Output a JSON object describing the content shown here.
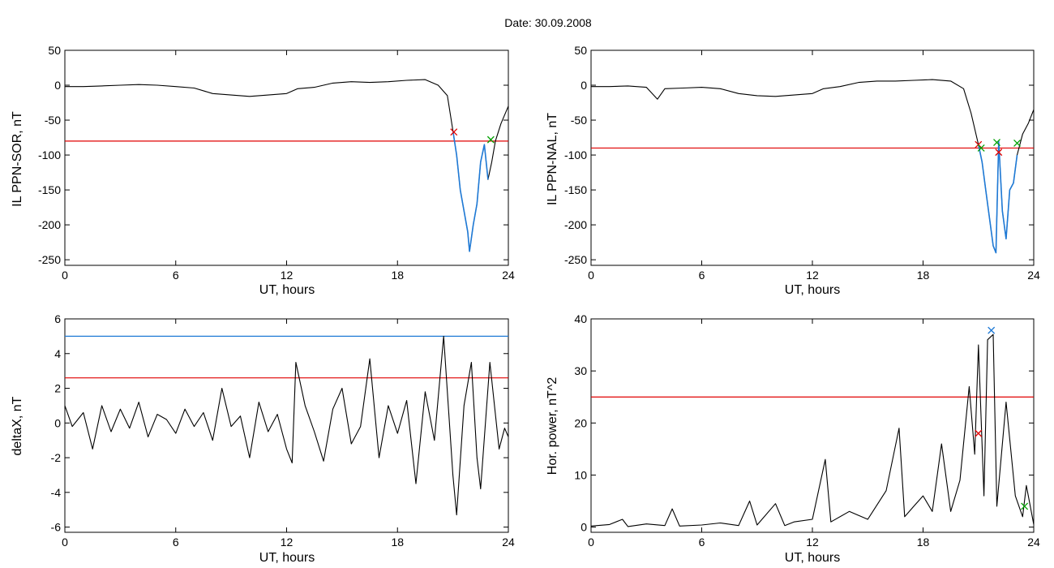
{
  "figure": {
    "title": "Date:  30.09.2008"
  },
  "chart_data": [
    {
      "type": "line",
      "xlabel": "UT, hours",
      "ylabel": "IL PPN-SOR, nT",
      "xlim": [
        0,
        24
      ],
      "ylim": [
        -258,
        50
      ],
      "xticks": [
        0,
        6,
        12,
        18,
        24
      ],
      "yticks": [
        50,
        0,
        -50,
        -100,
        -150,
        -200,
        -250
      ],
      "grid": false,
      "trace": [
        [
          0,
          -2
        ],
        [
          1,
          -2
        ],
        [
          2,
          -1
        ],
        [
          3,
          0
        ],
        [
          4,
          1
        ],
        [
          5,
          0
        ],
        [
          6,
          -2
        ],
        [
          7,
          -4
        ],
        [
          8,
          -12
        ],
        [
          9,
          -14
        ],
        [
          10,
          -16
        ],
        [
          11,
          -14
        ],
        [
          12,
          -12
        ],
        [
          12.6,
          -5
        ],
        [
          13.5,
          -3
        ],
        [
          14.5,
          3
        ],
        [
          15.5,
          5
        ],
        [
          16.5,
          4
        ],
        [
          17.5,
          5
        ],
        [
          18.5,
          7
        ],
        [
          19.5,
          8
        ],
        [
          20.2,
          0
        ],
        [
          20.7,
          -15
        ],
        [
          21.0,
          -65
        ],
        [
          21.2,
          -100
        ],
        [
          21.4,
          -150
        ],
        [
          21.6,
          -180
        ],
        [
          21.8,
          -210
        ],
        [
          21.9,
          -238
        ],
        [
          22.1,
          -200
        ],
        [
          22.3,
          -170
        ],
        [
          22.5,
          -110
        ],
        [
          22.7,
          -85
        ],
        [
          22.9,
          -135
        ],
        [
          23.1,
          -110
        ],
        [
          23.3,
          -80
        ],
        [
          23.6,
          -55
        ],
        [
          24.0,
          -30
        ]
      ],
      "highlight_range": [
        21.0,
        23.0
      ],
      "threshold": {
        "value": -80,
        "color": "#e00000"
      },
      "markers": [
        {
          "x": 21.05,
          "y": -67,
          "color": "#e00000"
        },
        {
          "x": 23.05,
          "y": -78,
          "color": "#00a000"
        }
      ],
      "colors": {
        "trace": "#000000",
        "highlight": "#1f7ad6"
      }
    },
    {
      "type": "line",
      "xlabel": "UT, hours",
      "ylabel": "IL PPN-NAL, nT",
      "xlim": [
        0,
        24
      ],
      "ylim": [
        -258,
        50
      ],
      "xticks": [
        0,
        6,
        12,
        18,
        24
      ],
      "yticks": [
        50,
        0,
        -50,
        -100,
        -150,
        -200,
        -250
      ],
      "grid": false,
      "trace": [
        [
          0,
          -2
        ],
        [
          1,
          -2
        ],
        [
          2,
          -1
        ],
        [
          3,
          -3
        ],
        [
          3.6,
          -20
        ],
        [
          4.0,
          -5
        ],
        [
          5,
          -4
        ],
        [
          6,
          -3
        ],
        [
          7,
          -5
        ],
        [
          8,
          -12
        ],
        [
          9,
          -15
        ],
        [
          10,
          -16
        ],
        [
          11,
          -14
        ],
        [
          12,
          -12
        ],
        [
          12.6,
          -5
        ],
        [
          13.5,
          -2
        ],
        [
          14.5,
          4
        ],
        [
          15.5,
          6
        ],
        [
          16.5,
          6
        ],
        [
          17.5,
          7
        ],
        [
          18.5,
          8
        ],
        [
          19.5,
          6
        ],
        [
          20.2,
          -5
        ],
        [
          20.6,
          -40
        ],
        [
          21.0,
          -85
        ],
        [
          21.2,
          -110
        ],
        [
          21.4,
          -150
        ],
        [
          21.6,
          -190
        ],
        [
          21.8,
          -230
        ],
        [
          21.95,
          -240
        ],
        [
          22.1,
          -80
        ],
        [
          22.3,
          -180
        ],
        [
          22.5,
          -220
        ],
        [
          22.7,
          -150
        ],
        [
          22.9,
          -140
        ],
        [
          23.1,
          -100
        ],
        [
          23.4,
          -70
        ],
        [
          23.7,
          -55
        ],
        [
          24.0,
          -35
        ]
      ],
      "highlight_range": [
        21.0,
        23.1
      ],
      "threshold": {
        "value": -90,
        "color": "#e00000"
      },
      "markers": [
        {
          "x": 21.0,
          "y": -85,
          "color": "#e00000"
        },
        {
          "x": 21.15,
          "y": -90,
          "color": "#00a000"
        },
        {
          "x": 22.0,
          "y": -82,
          "color": "#00a000"
        },
        {
          "x": 22.1,
          "y": -96,
          "color": "#e00000"
        },
        {
          "x": 23.1,
          "y": -83,
          "color": "#00a000"
        }
      ],
      "colors": {
        "trace": "#000000",
        "highlight": "#1f7ad6"
      }
    },
    {
      "type": "line",
      "xlabel": "UT, hours",
      "ylabel": "deltaX, nT",
      "xlim": [
        0,
        24
      ],
      "ylim": [
        -6.3,
        6
      ],
      "xticks": [
        0,
        6,
        12,
        18,
        24
      ],
      "yticks": [
        6,
        4,
        2,
        0,
        -2,
        -4,
        -6
      ],
      "grid": false,
      "trace": [
        [
          0,
          1.0
        ],
        [
          0.4,
          -0.2
        ],
        [
          1,
          0.6
        ],
        [
          1.5,
          -1.5
        ],
        [
          2,
          1.0
        ],
        [
          2.5,
          -0.5
        ],
        [
          3,
          0.8
        ],
        [
          3.5,
          -0.3
        ],
        [
          4,
          1.2
        ],
        [
          4.5,
          -0.8
        ],
        [
          5,
          0.5
        ],
        [
          5.5,
          0.2
        ],
        [
          6,
          -0.6
        ],
        [
          6.5,
          0.8
        ],
        [
          7,
          -0.2
        ],
        [
          7.5,
          0.6
        ],
        [
          8,
          -1.0
        ],
        [
          8.5,
          2.0
        ],
        [
          9,
          -0.2
        ],
        [
          9.5,
          0.4
        ],
        [
          10,
          -2.0
        ],
        [
          10.5,
          1.2
        ],
        [
          11,
          -0.5
        ],
        [
          11.5,
          0.5
        ],
        [
          12,
          -1.5
        ],
        [
          12.3,
          -2.3
        ],
        [
          12.5,
          3.5
        ],
        [
          13,
          1.0
        ],
        [
          13.5,
          -0.5
        ],
        [
          14,
          -2.2
        ],
        [
          14.5,
          0.8
        ],
        [
          15,
          2.0
        ],
        [
          15.5,
          -1.2
        ],
        [
          16,
          -0.2
        ],
        [
          16.5,
          3.7
        ],
        [
          17,
          -2.0
        ],
        [
          17.5,
          1.0
        ],
        [
          18,
          -0.6
        ],
        [
          18.5,
          1.3
        ],
        [
          19,
          -3.5
        ],
        [
          19.5,
          1.8
        ],
        [
          20,
          -1.0
        ],
        [
          20.5,
          5.0
        ],
        [
          21,
          -3.0
        ],
        [
          21.2,
          -5.3
        ],
        [
          21.6,
          1.0
        ],
        [
          22,
          3.5
        ],
        [
          22.3,
          -2.0
        ],
        [
          22.5,
          -3.8
        ],
        [
          23,
          3.5
        ],
        [
          23.5,
          -1.5
        ],
        [
          23.8,
          -0.3
        ],
        [
          24,
          -0.8
        ]
      ],
      "thresholds": [
        {
          "value": 5.0,
          "color": "#1f7ad6"
        },
        {
          "value": 2.6,
          "color": "#e00000"
        }
      ],
      "colors": {
        "trace": "#000000"
      }
    },
    {
      "type": "line",
      "xlabel": "UT, hours",
      "ylabel": "Hor. power, nT^2",
      "xlim": [
        0,
        24
      ],
      "ylim": [
        -1,
        40
      ],
      "xticks": [
        0,
        6,
        12,
        18,
        24
      ],
      "yticks": [
        40,
        30,
        20,
        10,
        0
      ],
      "grid": false,
      "trace": [
        [
          0,
          0.2
        ],
        [
          1,
          0.5
        ],
        [
          1.7,
          1.5
        ],
        [
          2,
          0.1
        ],
        [
          3,
          0.6
        ],
        [
          4,
          0.3
        ],
        [
          4.4,
          3.5
        ],
        [
          4.8,
          0.2
        ],
        [
          6,
          0.4
        ],
        [
          7,
          0.8
        ],
        [
          8,
          0.3
        ],
        [
          8.6,
          5.0
        ],
        [
          9,
          0.4
        ],
        [
          10,
          4.5
        ],
        [
          10.5,
          0.3
        ],
        [
          11,
          1.0
        ],
        [
          12,
          1.5
        ],
        [
          12.7,
          13.0
        ],
        [
          13,
          1.0
        ],
        [
          14,
          3.0
        ],
        [
          15,
          1.5
        ],
        [
          16,
          7.0
        ],
        [
          16.7,
          19.0
        ],
        [
          17,
          2.0
        ],
        [
          17.5,
          4.0
        ],
        [
          18,
          6.0
        ],
        [
          18.5,
          3.0
        ],
        [
          19,
          16.0
        ],
        [
          19.5,
          3.0
        ],
        [
          20,
          9.0
        ],
        [
          20.5,
          27.0
        ],
        [
          20.8,
          14.0
        ],
        [
          21.0,
          35.0
        ],
        [
          21.3,
          6.0
        ],
        [
          21.5,
          36.0
        ],
        [
          21.8,
          37.0
        ],
        [
          22.0,
          4.0
        ],
        [
          22.5,
          24.0
        ],
        [
          23,
          6.0
        ],
        [
          23.4,
          2.0
        ],
        [
          23.6,
          8.0
        ],
        [
          24,
          0.5
        ]
      ],
      "threshold": {
        "value": 25,
        "color": "#e00000"
      },
      "markers": [
        {
          "x": 21.0,
          "y": 18,
          "color": "#e00000"
        },
        {
          "x": 21.7,
          "y": 37.8,
          "color": "#1f7ad6"
        },
        {
          "x": 23.5,
          "y": 4,
          "color": "#00a000"
        }
      ],
      "colors": {
        "trace": "#000000"
      }
    }
  ]
}
